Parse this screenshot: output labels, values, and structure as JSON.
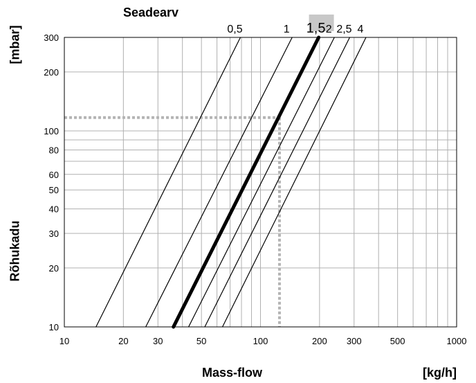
{
  "chart_data": {
    "type": "line",
    "title": "Seadearv",
    "xlabel": "Mass-flow",
    "xunit": "[kg/h]",
    "ylabel": "Rõhukadu",
    "yunit": "[mbar]",
    "xscale": "log",
    "yscale": "log",
    "xlim": [
      10,
      1000
    ],
    "ylim": [
      10,
      300
    ],
    "grid": true,
    "x_ticks": [
      10,
      20,
      30,
      50,
      100,
      200,
      300,
      500,
      1000
    ],
    "x_tick_labels": [
      "10",
      "20",
      "30",
      "50",
      "100",
      "200",
      "300",
      "500",
      "1000"
    ],
    "y_ticks": [
      10,
      20,
      30,
      40,
      50,
      60,
      80,
      100,
      200,
      300
    ],
    "y_tick_labels": [
      "10",
      "20",
      "30",
      "40",
      "50",
      "60",
      "80",
      "100",
      "200",
      "300"
    ],
    "series": [
      {
        "name": "0,5",
        "x": [
          14.5,
          79
        ],
        "y": [
          10,
          300
        ],
        "highlight": false
      },
      {
        "name": "1",
        "x": [
          26,
          145
        ],
        "y": [
          10,
          300
        ],
        "highlight": false
      },
      {
        "name": "1,5",
        "x": [
          36,
          198
        ],
        "y": [
          10,
          300
        ],
        "highlight": true
      },
      {
        "name": "2",
        "x": [
          43,
          238
        ],
        "y": [
          10,
          300
        ],
        "highlight": false
      },
      {
        "name": "2,5",
        "x": [
          52,
          285
        ],
        "y": [
          10,
          300
        ],
        "highlight": false
      },
      {
        "name": "4",
        "x": [
          64,
          345
        ],
        "y": [
          10,
          300
        ],
        "highlight": false
      }
    ],
    "reference_point": {
      "x": 125,
      "y": 117
    },
    "colors": {
      "line": "#000000",
      "grid": "#b0b0b0",
      "reference": "#b4b4b4",
      "highlight_bg": "#c8c8c8"
    }
  }
}
